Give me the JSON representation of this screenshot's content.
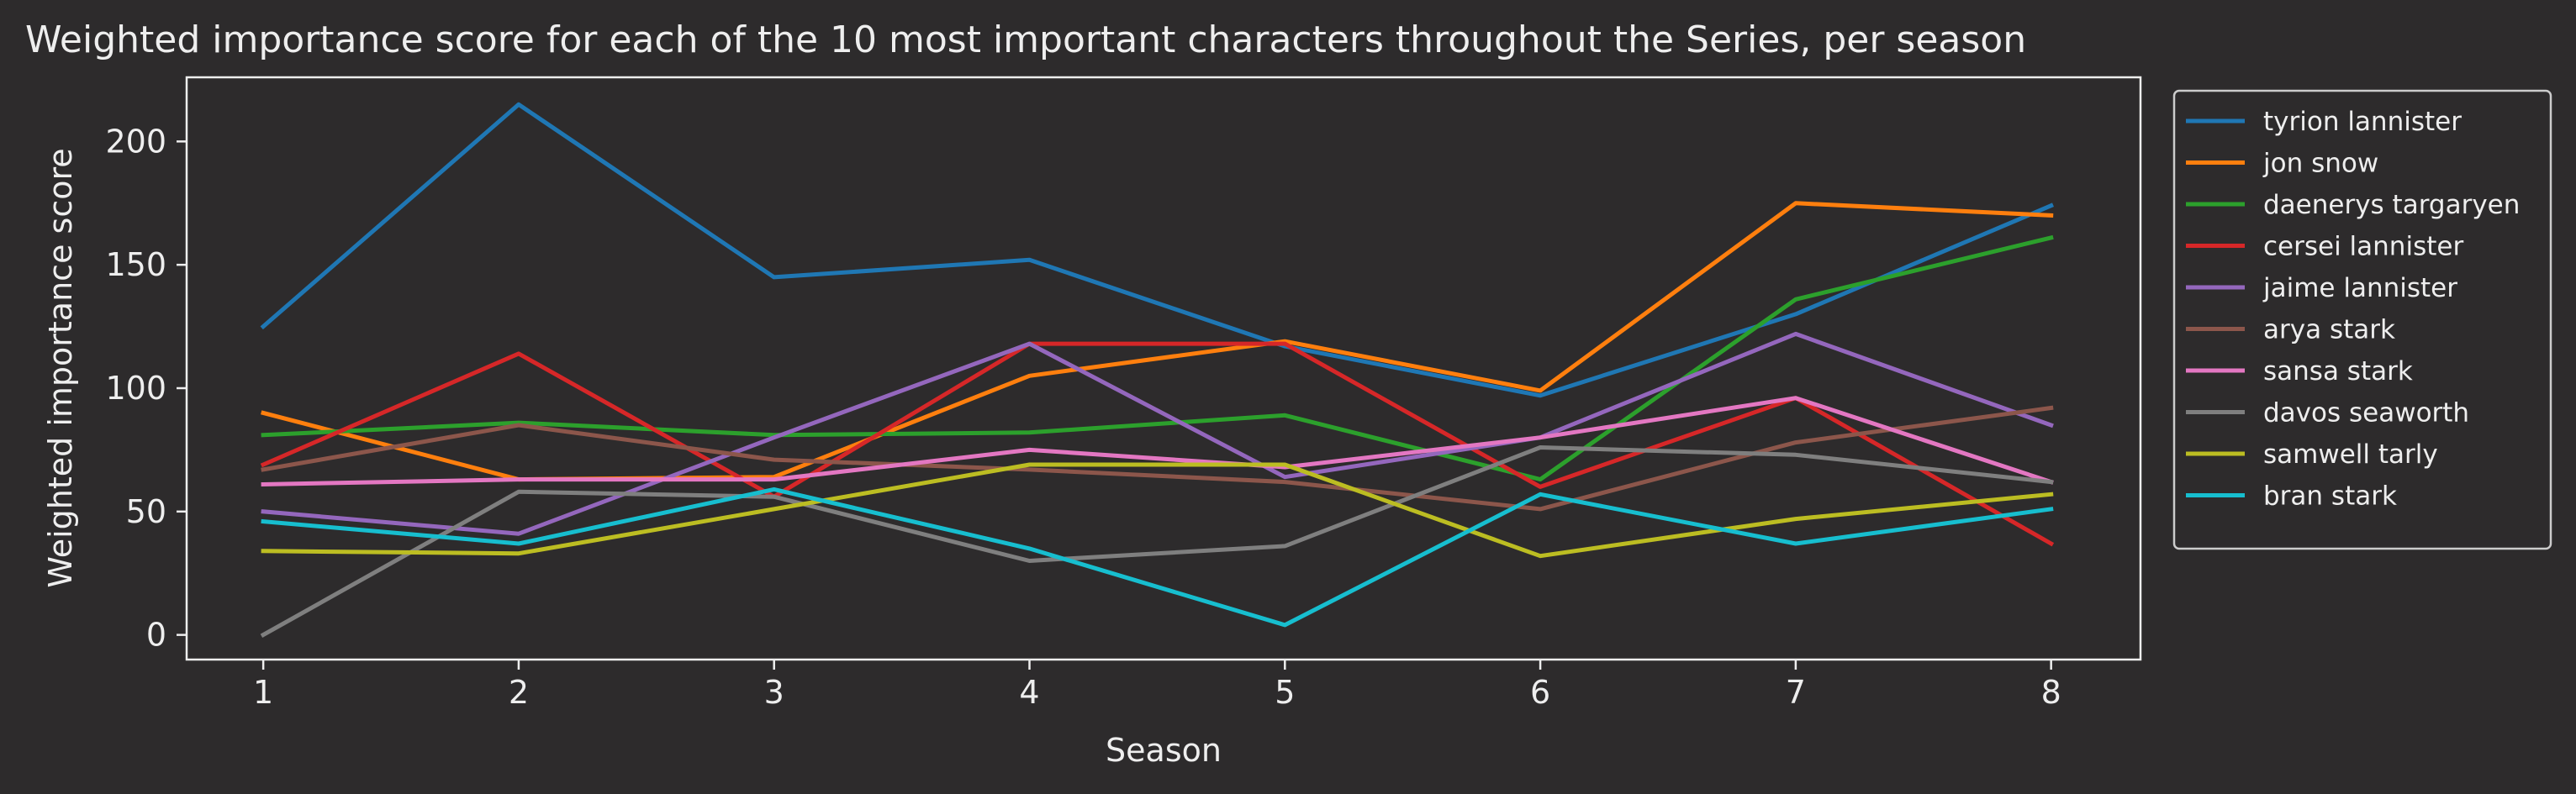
{
  "chart_data": {
    "type": "line",
    "title": "Weighted importance score for each of the 10 most important characters throughout the Series, per season",
    "xlabel": "Season",
    "ylabel": "Weighted importance score",
    "x": [
      1,
      2,
      3,
      4,
      5,
      6,
      7,
      8
    ],
    "xlim": [
      0.7,
      8.35
    ],
    "ylim": [
      -10,
      226
    ],
    "yticks": [
      0,
      50,
      100,
      150,
      200
    ],
    "grid": false,
    "legend_position": "outside-right-top",
    "colors": {
      "background": "#2d2b2c",
      "axes_edge": "#eeeeee",
      "text": "#eeeeee"
    },
    "series": [
      {
        "name": "tyrion lannister",
        "color": "#1f77b4",
        "values": [
          125,
          215,
          145,
          152,
          117,
          97,
          130,
          174
        ]
      },
      {
        "name": "jon snow",
        "color": "#ff7f0e",
        "values": [
          90,
          63,
          64,
          105,
          119,
          99,
          175,
          170
        ]
      },
      {
        "name": "daenerys targaryen",
        "color": "#2ca02c",
        "values": [
          81,
          86,
          81,
          82,
          89,
          63,
          136,
          161
        ]
      },
      {
        "name": "cersei lannister",
        "color": "#d62728",
        "values": [
          69,
          114,
          56,
          118,
          118,
          60,
          96,
          37
        ]
      },
      {
        "name": "jaime lannister",
        "color": "#9467bd",
        "values": [
          50,
          41,
          80,
          118,
          64,
          80,
          122,
          85
        ]
      },
      {
        "name": "arya stark",
        "color": "#8c564b",
        "values": [
          67,
          85,
          71,
          67,
          62,
          51,
          78,
          92
        ]
      },
      {
        "name": "sansa stark",
        "color": "#e377c2",
        "values": [
          61,
          63,
          63,
          75,
          68,
          80,
          96,
          62
        ]
      },
      {
        "name": "davos seaworth",
        "color": "#7f7f7f",
        "values": [
          0,
          58,
          56,
          30,
          36,
          76,
          73,
          62
        ]
      },
      {
        "name": "samwell tarly",
        "color": "#bcbd22",
        "values": [
          34,
          33,
          51,
          69,
          69,
          32,
          47,
          57
        ]
      },
      {
        "name": "bran stark",
        "color": "#17becf",
        "values": [
          46,
          37,
          59,
          35,
          4,
          57,
          37,
          51
        ]
      }
    ]
  }
}
